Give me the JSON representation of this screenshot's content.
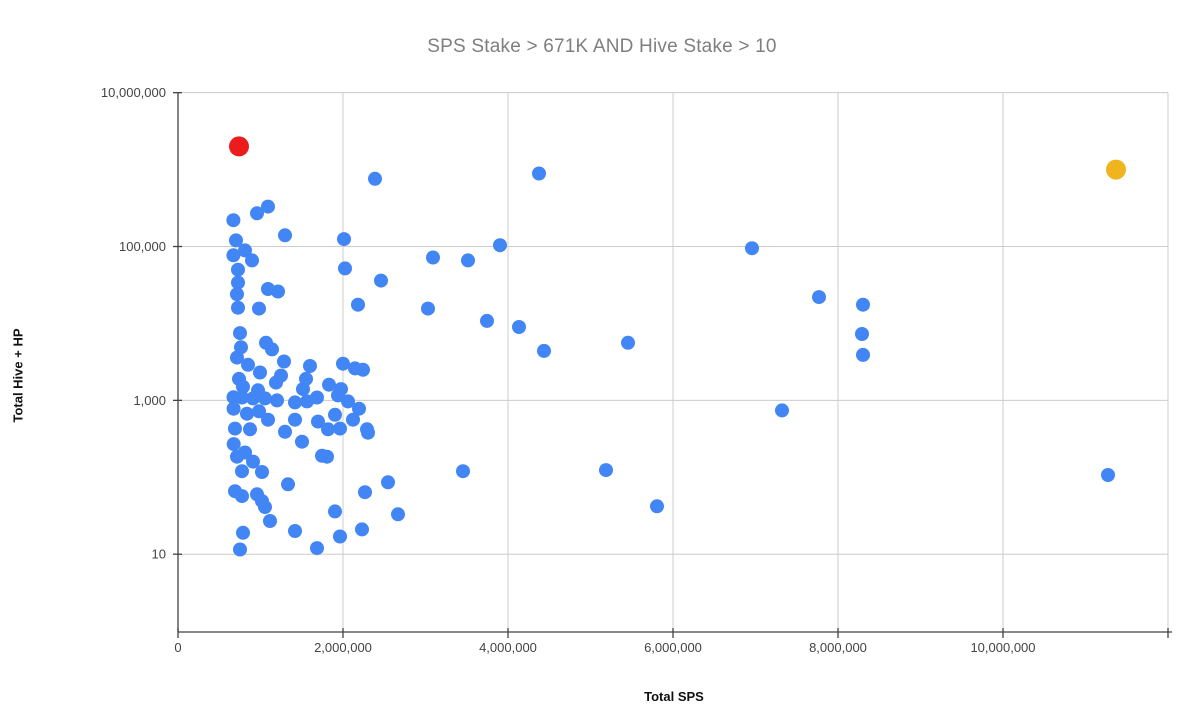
{
  "chart_data": {
    "type": "scatter",
    "title": "SPS Stake > 671K AND Hive Stake > 10",
    "xlabel": "Total SPS",
    "ylabel": "Total Hive + HP",
    "x_axis": {
      "scale": "linear",
      "min": 0,
      "max": 12000000,
      "labels": [
        {
          "value": 0,
          "label": "0"
        },
        {
          "value": 2000000,
          "label": "2,000,000"
        },
        {
          "value": 4000000,
          "label": "4,000,000"
        },
        {
          "value": 6000000,
          "label": "6,000,000"
        },
        {
          "value": 8000000,
          "label": "8,000,000"
        },
        {
          "value": 10000000,
          "label": "10,000,000"
        }
      ],
      "gridline_values": [
        2000000,
        4000000,
        6000000,
        8000000,
        10000000,
        12000000
      ],
      "tick_mark_values": [
        0,
        2000000,
        4000000,
        6000000,
        8000000,
        10000000,
        12000000
      ]
    },
    "y_axis": {
      "scale": "log",
      "min": 1,
      "max": 10000000,
      "labels": [
        {
          "value": 10,
          "label": "10"
        },
        {
          "value": 1000,
          "label": "1,000"
        },
        {
          "value": 100000,
          "label": "100,000"
        },
        {
          "value": 10000000,
          "label": "10,000,000"
        }
      ],
      "gridline_values": [
        10,
        1000,
        100000,
        10000000
      ],
      "tick_mark_values": [
        10,
        1000,
        100000,
        10000000
      ]
    },
    "grid": true,
    "legend_position": "none",
    "colors": {
      "series_blue": "#4285f4",
      "highlight_red": "#ec1c1c",
      "highlight_yellow": "#f0b41e",
      "gridline": "#cccccc",
      "axis_line": "#424242",
      "tick_label": "#444444",
      "title_gray": "#7f7f7f"
    },
    "series": [
      {
        "name": "accounts",
        "color": "#4285f4",
        "point_radius": 7,
        "points": [
          [
            2388000,
            760000
          ],
          [
            4376000,
            890000
          ],
          [
            671000,
            220000
          ],
          [
            958000,
            270000
          ],
          [
            1091000,
            330000
          ],
          [
            1297000,
            140000
          ],
          [
            703000,
            120000
          ],
          [
            672000,
            77000
          ],
          [
            812000,
            89000
          ],
          [
            897000,
            66000
          ],
          [
            2012000,
            125000
          ],
          [
            3091000,
            72000
          ],
          [
            3515000,
            66000
          ],
          [
            3903000,
            104000
          ],
          [
            2024000,
            52000
          ],
          [
            2461000,
            36000
          ],
          [
            6958000,
            95000
          ],
          [
            7770000,
            22000
          ],
          [
            8303000,
            17500
          ],
          [
            8291000,
            7300
          ],
          [
            8303000,
            3900
          ],
          [
            727000,
            50000
          ],
          [
            727000,
            34000
          ],
          [
            1091000,
            28000
          ],
          [
            1212000,
            26000
          ],
          [
            715000,
            24000
          ],
          [
            727000,
            16000
          ],
          [
            982000,
            15600
          ],
          [
            2182000,
            17500
          ],
          [
            3030000,
            15600
          ],
          [
            3745000,
            10800
          ],
          [
            4133000,
            9000
          ],
          [
            5455000,
            5600
          ],
          [
            4436000,
            4400
          ],
          [
            752000,
            7500
          ],
          [
            764000,
            4900
          ],
          [
            1067000,
            5600
          ],
          [
            1139000,
            4600
          ],
          [
            715000,
            3600
          ],
          [
            848000,
            2900
          ],
          [
            1285000,
            3200
          ],
          [
            1248000,
            2100
          ],
          [
            994000,
            2300
          ],
          [
            1600000,
            2800
          ],
          [
            1552000,
            1900
          ],
          [
            739000,
            1900
          ],
          [
            788000,
            1500
          ],
          [
            970000,
            1350
          ],
          [
            1188000,
            1700
          ],
          [
            1515000,
            1400
          ],
          [
            1830000,
            1600
          ],
          [
            1976000,
            1400
          ],
          [
            2000000,
            3000
          ],
          [
            2145000,
            2600
          ],
          [
            2242000,
            2500
          ],
          [
            673000,
            1100
          ],
          [
            776000,
            1090
          ],
          [
            909000,
            1060
          ],
          [
            1055000,
            1060
          ],
          [
            1200000,
            1000
          ],
          [
            1418000,
            940
          ],
          [
            1564000,
            970
          ],
          [
            1685000,
            1090
          ],
          [
            1939000,
            1160
          ],
          [
            2061000,
            970
          ],
          [
            674000,
            780
          ],
          [
            836000,
            670
          ],
          [
            982000,
            720
          ],
          [
            1903000,
            650
          ],
          [
            2194000,
            780
          ],
          [
            1091000,
            560
          ],
          [
            1418000,
            560
          ],
          [
            1697000,
            530
          ],
          [
            2121000,
            560
          ],
          [
            2291000,
            420
          ],
          [
            691000,
            430
          ],
          [
            873000,
            420
          ],
          [
            1297000,
            390
          ],
          [
            1818000,
            420
          ],
          [
            1964000,
            430
          ],
          [
            1503000,
            290
          ],
          [
            675000,
            270
          ],
          [
            812000,
            210
          ],
          [
            715000,
            185
          ],
          [
            909000,
            160
          ],
          [
            1018000,
            117
          ],
          [
            776000,
            120
          ],
          [
            1745000,
            190
          ],
          [
            1806000,
            185
          ],
          [
            2303000,
            380
          ],
          [
            691000,
            66
          ],
          [
            776000,
            57
          ],
          [
            958000,
            60
          ],
          [
            1018000,
            49
          ],
          [
            1055000,
            41
          ],
          [
            1333000,
            81
          ],
          [
            1903000,
            36
          ],
          [
            2267000,
            64
          ],
          [
            2545000,
            86
          ],
          [
            2667000,
            33
          ],
          [
            1115000,
            27
          ],
          [
            3455000,
            120
          ],
          [
            788000,
            19
          ],
          [
            1418000,
            20
          ],
          [
            1964000,
            17
          ],
          [
            2230000,
            21
          ],
          [
            752000,
            11.5
          ],
          [
            1685000,
            12
          ],
          [
            5188000,
            124
          ],
          [
            5806000,
            42
          ],
          [
            7321000,
            740
          ],
          [
            11273000,
            107
          ]
        ]
      },
      {
        "name": "highlight-red",
        "color": "#ec1c1c",
        "point_radius": 10,
        "points": [
          [
            739000,
            2000000
          ]
        ]
      },
      {
        "name": "highlight-yellow",
        "color": "#f0b41e",
        "point_radius": 10,
        "points": [
          [
            11370000,
            1000000
          ]
        ]
      }
    ]
  }
}
